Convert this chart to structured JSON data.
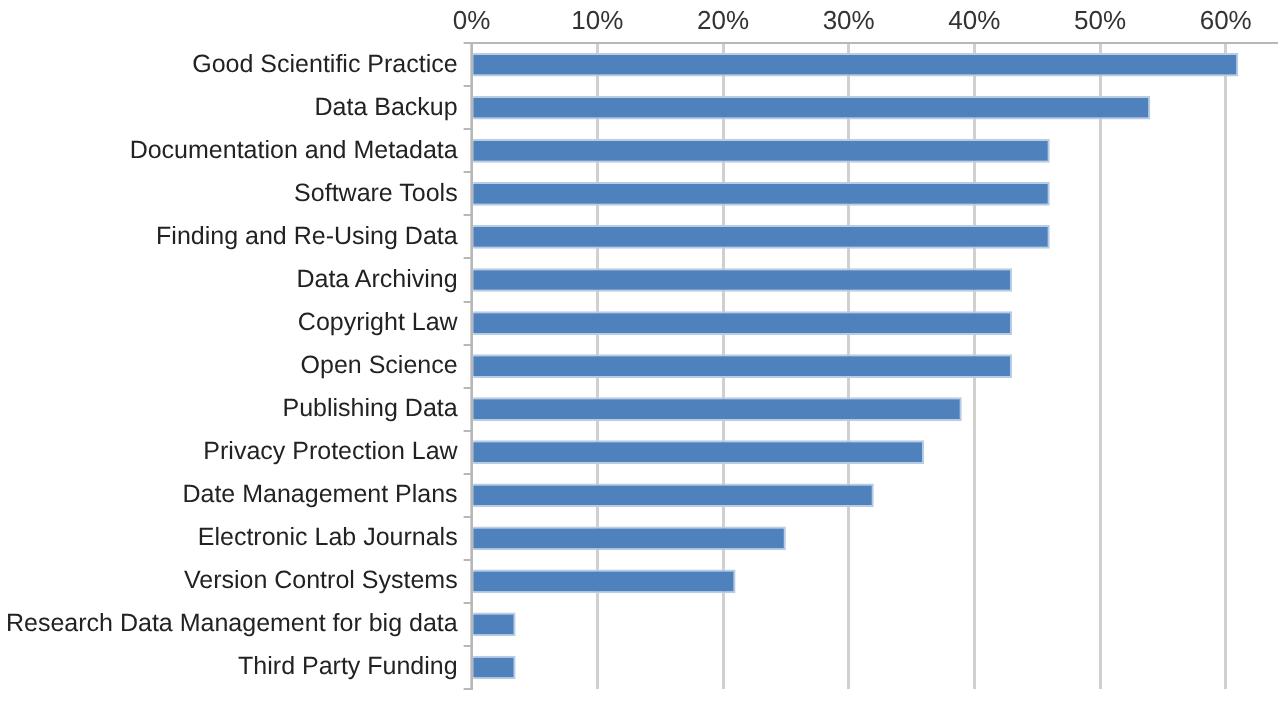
{
  "chart_data": {
    "type": "bar",
    "orientation": "horizontal",
    "categories": [
      "Good Scientific Practice",
      "Data Backup",
      "Documentation and Metadata",
      "Software Tools",
      "Finding and Re-Using Data",
      "Data Archiving",
      "Copyright Law",
      "Open Science",
      "Publishing Data",
      "Privacy Protection Law",
      "Date Management Plans",
      "Electronic Lab Journals",
      "Version Control Systems",
      "Research Data Management for big data",
      "Third Party Funding"
    ],
    "values": [
      61,
      54,
      46,
      46,
      46,
      43,
      43,
      43,
      39,
      36,
      32,
      25,
      21,
      3.5,
      3.5
    ],
    "color": "#4f81bd",
    "xlim": [
      0,
      64
    ],
    "xticks": [
      {
        "value": 0,
        "label": "0%"
      },
      {
        "value": 10,
        "label": "10%"
      },
      {
        "value": 20,
        "label": "20%"
      },
      {
        "value": 30,
        "label": "30%"
      },
      {
        "value": 40,
        "label": "40%"
      },
      {
        "value": 50,
        "label": "50%"
      },
      {
        "value": 60,
        "label": "60%"
      }
    ],
    "grid": "x",
    "legend": false
  }
}
